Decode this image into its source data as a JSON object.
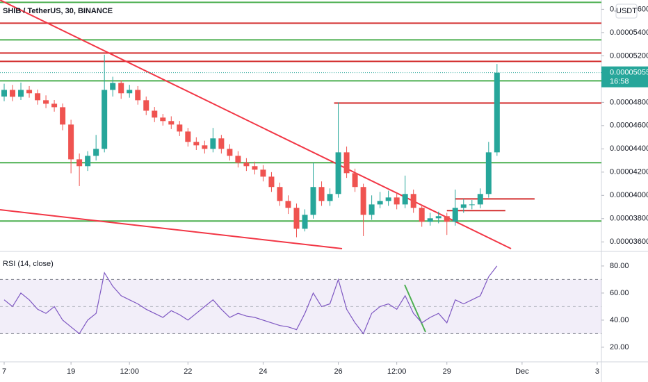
{
  "chart_data": {
    "type": "candlestick",
    "title": "SHIB / TetherUS, 30, BINANCE",
    "currency": "USDT",
    "open": [
      4.85e-05,
      4.907e-05,
      4.848e-05,
      4.907e-05,
      4.878e-05,
      4.818e-05,
      4.788e-05,
      4.758e-05,
      4.609e-05,
      4.31e-05,
      4.251e-05,
      4.34e-05,
      4.4e-05,
      4.907e-05,
      4.967e-05,
      4.878e-05,
      4.907e-05,
      4.818e-05,
      4.728e-05,
      4.669e-05,
      4.639e-05,
      4.609e-05,
      4.549e-05,
      4.46e-05,
      4.43e-05,
      4.4e-05,
      4.49e-05,
      4.4e-05,
      4.34e-05,
      4.281e-05,
      4.251e-05,
      4.221e-05,
      4.161e-05,
      4.072e-05,
      3.952e-05,
      3.893e-05,
      3.713e-05,
      3.833e-05,
      4.072e-05,
      3.952e-05,
      4.012e-05,
      4.37e-05,
      4.191e-05,
      4.072e-05,
      3.833e-05,
      3.922e-05,
      3.952e-05,
      3.982e-05,
      3.922e-05,
      4.012e-05,
      3.893e-05,
      3.773e-05,
      3.803e-05,
      3.821e-05,
      3.773e-05,
      3.893e-05,
      3.922e-05,
      3.922e-05,
      4.012e-05,
      4.37e-05
    ],
    "high": [
      4.96e-05,
      4.95e-05,
      4.97e-05,
      4.94e-05,
      4.91e-05,
      4.86e-05,
      4.82e-05,
      4.79e-05,
      4.65e-05,
      4.36e-05,
      4.38e-05,
      4.52e-05,
      5.21e-05,
      5.02e-05,
      4.99e-05,
      4.95e-05,
      4.94e-05,
      4.85e-05,
      4.76e-05,
      4.7e-05,
      4.68e-05,
      4.64e-05,
      4.58e-05,
      4.5e-05,
      4.47e-05,
      4.58e-05,
      4.52e-05,
      4.44e-05,
      4.38e-05,
      4.32e-05,
      4.29e-05,
      4.26e-05,
      4.2e-05,
      4.11e-05,
      4e-05,
      3.93e-05,
      3.88e-05,
      4.28e-05,
      4.12e-05,
      4.06e-05,
      4.8e-05,
      4.42e-05,
      4.23e-05,
      4.1e-05,
      4e-05,
      4.03e-05,
      4.04e-05,
      4.02e-05,
      4.17e-05,
      4.05e-05,
      3.92e-05,
      3.85e-05,
      3.86e-05,
      3.85e-05,
      4.05e-05,
      3.97e-05,
      3.96e-05,
      4.06e-05,
      4.46e-05,
      5.13e-05
    ],
    "low": [
      4.81e-05,
      4.81e-05,
      4.82e-05,
      4.84e-05,
      4.78e-05,
      4.75e-05,
      4.72e-05,
      4.56e-05,
      4.19e-05,
      4.08e-05,
      4.21e-05,
      4.3e-05,
      4.37e-05,
      4.85e-05,
      4.83e-05,
      4.84e-05,
      4.78e-05,
      4.69e-05,
      4.63e-05,
      4.6e-05,
      4.57e-05,
      4.51e-05,
      4.42e-05,
      4.39e-05,
      4.36e-05,
      4.37e-05,
      4.36e-05,
      4.3e-05,
      4.24e-05,
      4.21e-05,
      4.18e-05,
      4.12e-05,
      4.03e-05,
      3.91e-05,
      3.84e-05,
      3.64e-05,
      3.69e-05,
      3.8e-05,
      3.91e-05,
      3.91e-05,
      3.98e-05,
      4.15e-05,
      4.03e-05,
      3.65e-05,
      3.79e-05,
      3.89e-05,
      3.91e-05,
      3.88e-05,
      3.89e-05,
      3.85e-05,
      3.73e-05,
      3.74e-05,
      3.76e-05,
      3.66e-05,
      3.74e-05,
      3.85e-05,
      3.88e-05,
      3.89e-05,
      3.98e-05,
      4.34e-05
    ],
    "close": [
      4.907e-05,
      4.848e-05,
      4.907e-05,
      4.878e-05,
      4.818e-05,
      4.788e-05,
      4.758e-05,
      4.609e-05,
      4.31e-05,
      4.251e-05,
      4.34e-05,
      4.4e-05,
      4.907e-05,
      4.967e-05,
      4.878e-05,
      4.907e-05,
      4.818e-05,
      4.728e-05,
      4.669e-05,
      4.639e-05,
      4.609e-05,
      4.549e-05,
      4.46e-05,
      4.43e-05,
      4.4e-05,
      4.49e-05,
      4.4e-05,
      4.34e-05,
      4.281e-05,
      4.251e-05,
      4.221e-05,
      4.161e-05,
      4.072e-05,
      3.952e-05,
      3.893e-05,
      3.713e-05,
      3.833e-05,
      4.072e-05,
      3.952e-05,
      4.012e-05,
      4.37e-05,
      4.191e-05,
      4.072e-05,
      3.833e-05,
      3.922e-05,
      3.952e-05,
      3.982e-05,
      3.922e-05,
      4.012e-05,
      3.893e-05,
      3.773e-05,
      3.803e-05,
      3.821e-05,
      3.773e-05,
      3.893e-05,
      3.922e-05,
      3.922e-05,
      4.012e-05,
      4.37e-05,
      5.055e-05
    ],
    "up_color": "#26a69a",
    "down_color": "#ef5350",
    "xlim": [
      -0.5,
      71.5
    ],
    "xticks": [
      {
        "value": 0,
        "label": "7"
      },
      {
        "value": 8,
        "label": "19"
      },
      {
        "value": 15,
        "label": "12:00"
      },
      {
        "value": 22,
        "label": "22"
      },
      {
        "value": 31,
        "label": "24"
      },
      {
        "value": 40,
        "label": "26"
      },
      {
        "value": 47,
        "label": "12:00"
      },
      {
        "value": 53,
        "label": "29"
      },
      {
        "value": 62,
        "label": "Dec"
      },
      {
        "value": 71,
        "label": "3"
      }
    ],
    "ylim": [
      3.53e-05,
      5.68e-05
    ],
    "yticks": [
      {
        "value": 3.6e-05,
        "label": "0.00003600"
      },
      {
        "value": 3.8e-05,
        "label": "0.00003800"
      },
      {
        "value": 4e-05,
        "label": "0.00004000"
      },
      {
        "value": 4.2e-05,
        "label": "0.00004200"
      },
      {
        "value": 4.4e-05,
        "label": "0.00004400"
      },
      {
        "value": 4.6e-05,
        "label": "0.00004600"
      },
      {
        "value": 4.8e-05,
        "label": "0.00004800"
      },
      {
        "value": 5e-05,
        "label": "0.00005000"
      },
      {
        "value": 5.2e-05,
        "label": "0.00005200"
      },
      {
        "value": 5.4e-05,
        "label": "0.00005400"
      },
      {
        "value": 5.6e-05,
        "label": "0.00005600"
      }
    ],
    "last_price": {
      "value": 5.055e-05,
      "label": "0.00005055"
    },
    "countdown": "16:58",
    "green_levels": [
      5.66e-05,
      5.337e-05,
      4.985e-05,
      4.281e-05,
      3.779e-05
    ],
    "red_levels": [
      5.481e-05,
      5.224e-05,
      5.152e-05
    ],
    "segments": [
      {
        "value": 4.794e-05,
        "from": 39.5,
        "to": 71.5
      },
      {
        "value": 3.97e-05,
        "from": 54,
        "to": 63.5
      },
      {
        "value": 3.869e-05,
        "from": 53,
        "to": 60
      }
    ],
    "rsi": {
      "title": "RSI (14, close)",
      "values": [
        55,
        50,
        60,
        55,
        48,
        45,
        50,
        40,
        35,
        30,
        40,
        45,
        75,
        65,
        58,
        55,
        52,
        48,
        45,
        42,
        47,
        44,
        40,
        45,
        50,
        55,
        48,
        42,
        45,
        43,
        42,
        40,
        38,
        36,
        35,
        33,
        45,
        60,
        50,
        52,
        70,
        48,
        38,
        30,
        45,
        50,
        52,
        48,
        58,
        45,
        38,
        42,
        45,
        38,
        55,
        52,
        55,
        58,
        72,
        80
      ],
      "color": "#7e57c2",
      "ylim": [
        9.7,
        89.2
      ],
      "yticks": [
        {
          "value": 20,
          "label": "20.00"
        },
        {
          "value": 40,
          "label": "40.00"
        },
        {
          "value": 60,
          "label": "60.00"
        },
        {
          "value": 80,
          "label": "80.00"
        }
      ],
      "band": [
        30,
        70
      ],
      "mid": 50
    }
  }
}
